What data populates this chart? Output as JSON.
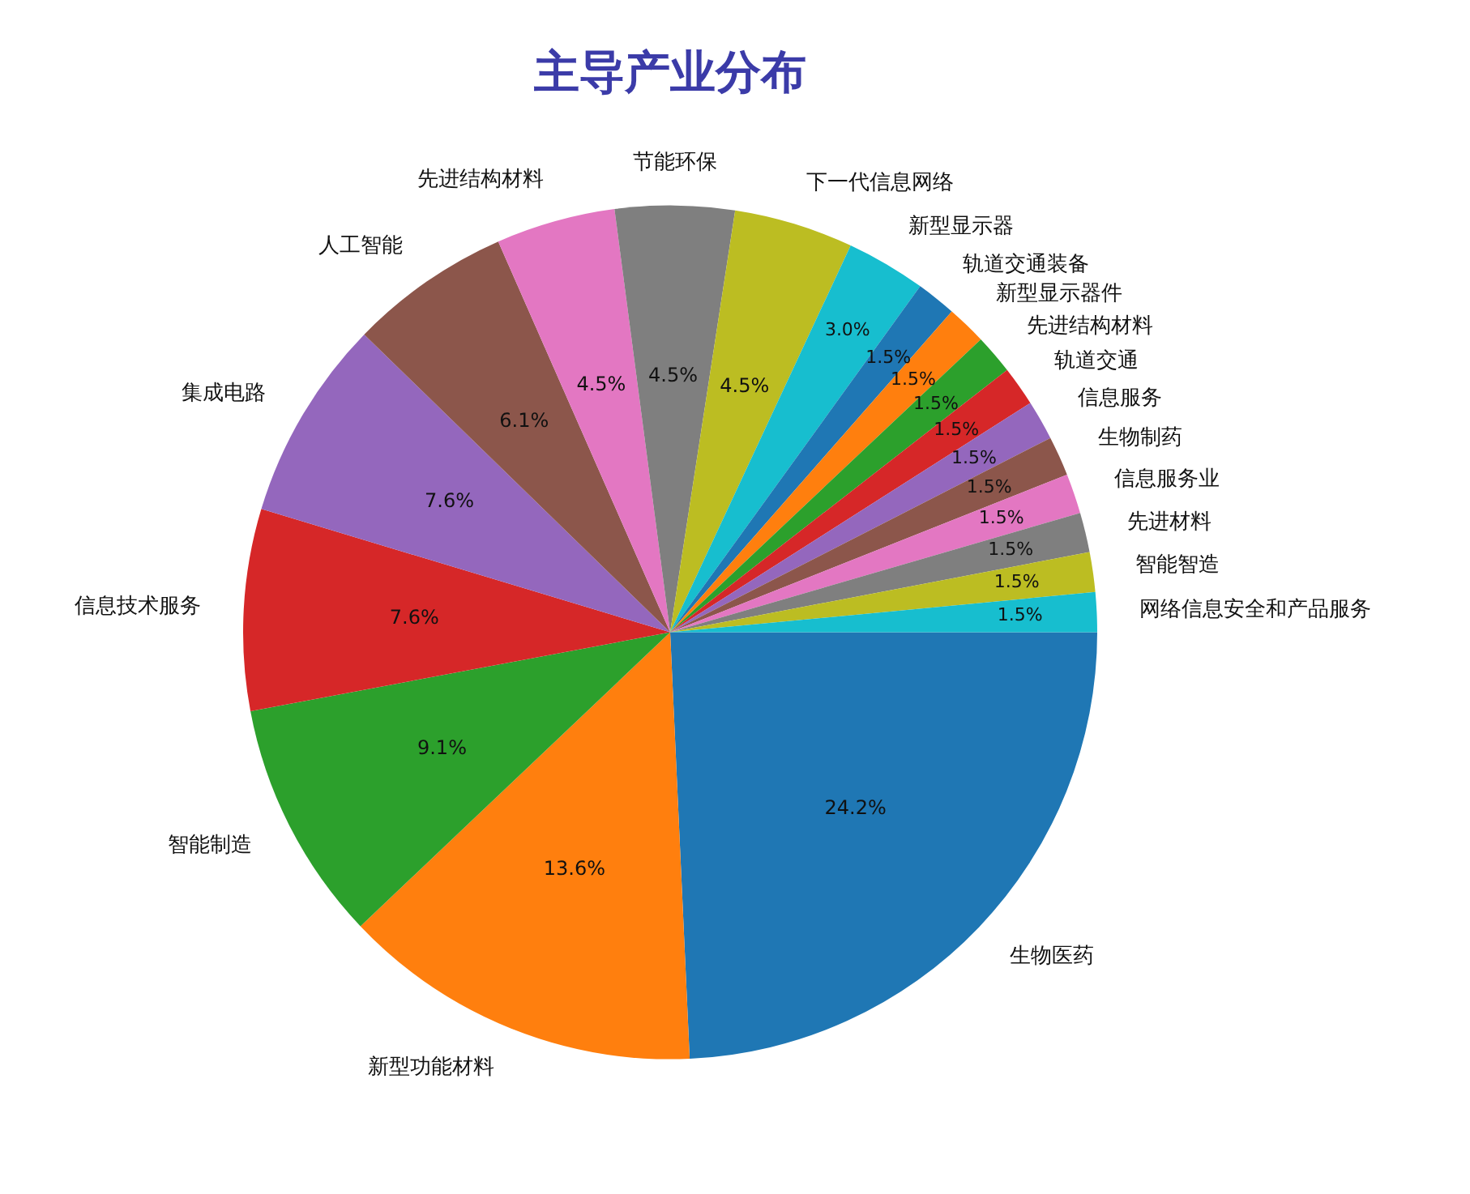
{
  "chart_data": {
    "type": "pie",
    "title": "主导产业分布",
    "categories": [
      "生物医药",
      "新型功能材料",
      "智能制造",
      "信息技术服务",
      "集成电路",
      "人工智能",
      "先进结构材料",
      "节能环保",
      "下一代信息网络",
      "新型显示器",
      "轨道交通装备",
      "新型显示器件",
      "先进结构材料",
      "轨道交通",
      "信息服务",
      "生物制药",
      "信息服务业",
      "先进材料",
      "智能智造",
      "网络信息安全和产品服务"
    ],
    "values": [
      24.2,
      13.6,
      9.1,
      7.6,
      7.6,
      6.1,
      4.5,
      4.5,
      4.5,
      3.0,
      1.5,
      1.5,
      1.5,
      1.5,
      1.5,
      1.5,
      1.5,
      1.5,
      1.5,
      1.5
    ],
    "value_labels": [
      "24.2%",
      "13.6%",
      "9.1%",
      "7.6%",
      "7.6%",
      "6.1%",
      "4.5%",
      "4.5%",
      "4.5%",
      "3.0%",
      "1.5%",
      "1.5%",
      "1.5%",
      "1.5%",
      "1.5%",
      "1.5%",
      "1.5%",
      "1.5%",
      "1.5%",
      "1.5%"
    ],
    "colors": [
      "#1f77b4",
      "#ff7f0e",
      "#2ca02c",
      "#d62728",
      "#9467bd",
      "#8c564b",
      "#e377c2",
      "#7f7f7f",
      "#bcbd22",
      "#17becf",
      "#1f77b4",
      "#ff7f0e",
      "#2ca02c",
      "#d62728",
      "#9467bd",
      "#8c564b",
      "#e377c2",
      "#7f7f7f",
      "#bcbd22",
      "#17becf"
    ],
    "legend": false
  }
}
